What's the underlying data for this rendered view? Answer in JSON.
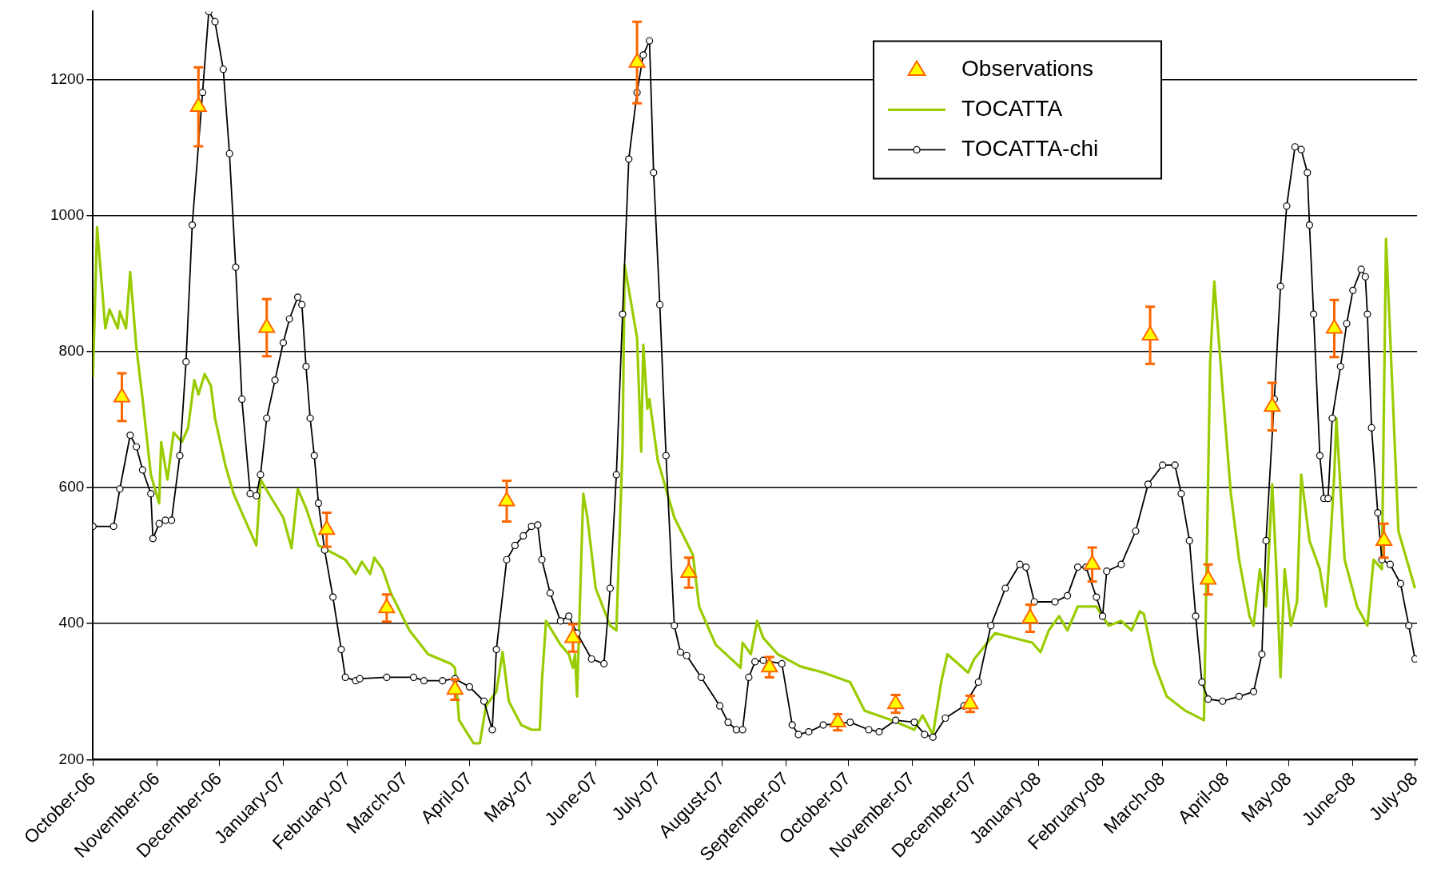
{
  "chart_data": {
    "type": "line",
    "xlim": [
      "2006-10-01",
      "2008-07-02"
    ],
    "xticks": [
      {
        "value": "2006-10-01",
        "label": "October-06"
      },
      {
        "value": "2006-11-01",
        "label": "November-06"
      },
      {
        "value": "2006-12-01",
        "label": "December-06"
      },
      {
        "value": "2007-01-01",
        "label": "January-07"
      },
      {
        "value": "2007-02-01",
        "label": "February-07"
      },
      {
        "value": "2007-03-01",
        "label": "March-07"
      },
      {
        "value": "2007-04-01",
        "label": "April-07"
      },
      {
        "value": "2007-05-01",
        "label": "May-07"
      },
      {
        "value": "2007-06-01",
        "label": "June-07"
      },
      {
        "value": "2007-07-01",
        "label": "July-07"
      },
      {
        "value": "2007-08-01",
        "label": "August-07"
      },
      {
        "value": "2007-09-01",
        "label": "September-07"
      },
      {
        "value": "2007-10-01",
        "label": "October-07"
      },
      {
        "value": "2007-11-01",
        "label": "November-07"
      },
      {
        "value": "2007-12-01",
        "label": "December-07"
      },
      {
        "value": "2008-01-01",
        "label": "January-08"
      },
      {
        "value": "2008-02-01",
        "label": "February-08"
      },
      {
        "value": "2008-03-01",
        "label": "March-08"
      },
      {
        "value": "2008-04-01",
        "label": "April-08"
      },
      {
        "value": "2008-05-01",
        "label": "May-08"
      },
      {
        "value": "2008-06-01",
        "label": "June-08"
      },
      {
        "value": "2008-07-01",
        "label": "July-08"
      }
    ],
    "ylim": [
      200,
      1300
    ],
    "yticks": [
      200,
      400,
      600,
      800,
      1000,
      1200
    ],
    "grid": "y",
    "legend": "top right",
    "series": [
      {
        "name": "Observations",
        "type": "scatter",
        "color": "#ff6600",
        "marker": "triangle",
        "x": [
          "2006-10-15",
          "2006-11-21",
          "2006-12-24",
          "2007-01-22",
          "2007-02-20",
          "2007-03-25",
          "2007-04-19",
          "2007-05-21",
          "2007-06-21",
          "2007-07-16",
          "2007-08-24",
          "2007-09-26",
          "2007-10-24",
          "2007-11-29",
          "2007-12-28",
          "2008-01-27",
          "2008-02-24",
          "2008-03-23",
          "2008-04-23",
          "2008-05-23",
          "2008-06-16"
        ],
        "values": [
          733,
          1160,
          835,
          538,
          423,
          303,
          580,
          379,
          1225,
          475,
          336,
          255,
          282,
          282,
          408,
          487,
          824,
          465,
          719,
          834,
          522
        ],
        "errors": [
          35,
          58,
          42,
          25,
          20,
          15,
          30,
          20,
          60,
          22,
          15,
          12,
          13,
          12,
          20,
          25,
          42,
          22,
          35,
          42,
          25
        ]
      },
      {
        "name": "TOCATTA",
        "color": "#99cc00",
        "marker": "none",
        "line_style": "solid",
        "x": [
          "2006-10-01",
          "2006-10-03",
          "2006-10-07",
          "2006-10-09",
          "2006-10-13",
          "2006-10-14",
          "2006-10-17",
          "2006-10-19",
          "2006-10-22",
          "2006-10-25",
          "2006-10-29",
          "2006-11-02",
          "2006-11-03",
          "2006-11-06",
          "2006-11-09",
          "2006-11-13",
          "2006-11-16",
          "2006-11-19",
          "2006-11-21",
          "2006-11-24",
          "2006-11-27",
          "2006-11-29",
          "2006-12-04",
          "2006-12-08",
          "2006-12-12",
          "2006-12-19",
          "2006-12-21",
          "2006-12-25",
          "2007-01-01",
          "2007-01-05",
          "2007-01-08",
          "2007-01-12",
          "2007-01-18",
          "2007-01-31",
          "2007-02-05",
          "2007-02-08",
          "2007-02-12",
          "2007-02-14",
          "2007-02-18",
          "2007-02-22",
          "2007-03-03",
          "2007-03-12",
          "2007-03-23",
          "2007-03-25",
          "2007-03-27",
          "2007-04-03",
          "2007-04-06",
          "2007-04-09",
          "2007-04-14",
          "2007-04-17",
          "2007-04-20",
          "2007-04-26",
          "2007-05-01",
          "2007-05-05",
          "2007-05-06",
          "2007-05-08",
          "2007-05-15",
          "2007-05-19",
          "2007-05-21",
          "2007-05-22",
          "2007-05-23",
          "2007-05-26",
          "2007-05-28",
          "2007-06-01",
          "2007-06-08",
          "2007-06-11",
          "2007-06-14",
          "2007-06-15",
          "2007-06-21",
          "2007-06-23",
          "2007-06-24",
          "2007-06-26",
          "2007-06-27",
          "2007-07-01",
          "2007-07-09",
          "2007-07-18",
          "2007-07-21",
          "2007-07-29",
          "2007-08-08",
          "2007-08-10",
          "2007-08-11",
          "2007-08-15",
          "2007-08-18",
          "2007-08-21",
          "2007-08-28",
          "2007-09-08",
          "2007-09-19",
          "2007-10-02",
          "2007-10-09",
          "2007-10-22",
          "2007-11-02",
          "2007-11-06",
          "2007-11-11",
          "2007-11-15",
          "2007-11-18",
          "2007-11-28",
          "2007-12-01",
          "2007-12-11",
          "2007-12-29",
          "2008-01-02",
          "2008-01-06",
          "2008-01-11",
          "2008-01-15",
          "2008-01-20",
          "2008-01-29",
          "2008-02-04",
          "2008-02-10",
          "2008-02-15",
          "2008-02-19",
          "2008-02-21",
          "2008-02-26",
          "2008-03-03",
          "2008-03-12",
          "2008-03-21",
          "2008-03-24",
          "2008-03-26",
          "2008-03-30",
          "2008-04-03",
          "2008-04-07",
          "2008-04-12",
          "2008-04-14",
          "2008-04-17",
          "2008-04-20",
          "2008-04-23",
          "2008-04-25",
          "2008-04-27",
          "2008-04-29",
          "2008-05-02",
          "2008-05-05",
          "2008-05-07",
          "2008-05-11",
          "2008-05-16",
          "2008-05-19",
          "2008-05-21",
          "2008-05-23",
          "2008-05-24",
          "2008-05-28",
          "2008-06-03",
          "2008-06-08",
          "2008-06-11",
          "2008-06-15",
          "2008-06-17",
          "2008-06-23",
          "2008-07-01"
        ],
        "values": [
          762,
          983,
          834,
          862,
          834,
          859,
          834,
          917,
          806,
          730,
          619,
          577,
          667,
          612,
          681,
          667,
          688,
          758,
          737,
          767,
          750,
          702,
          633,
          591,
          563,
          515,
          612,
          591,
          556,
          511,
          598,
          570,
          515,
          494,
          473,
          491,
          473,
          497,
          480,
          445,
          390,
          355,
          341,
          335,
          258,
          224,
          224,
          279,
          300,
          358,
          286,
          251,
          244,
          244,
          314,
          404,
          369,
          355,
          335,
          355,
          293,
          591,
          556,
          452,
          397,
          390,
          660,
          927,
          820,
          653,
          810,
          716,
          730,
          640,
          556,
          501,
          425,
          369,
          341,
          335,
          372,
          355,
          404,
          379,
          355,
          337,
          328,
          314,
          272,
          258,
          244,
          265,
          237,
          314,
          355,
          328,
          348,
          386,
          372,
          358,
          390,
          411,
          390,
          425,
          425,
          397,
          404,
          390,
          418,
          414,
          341,
          293,
          272,
          258,
          785,
          903,
          744,
          591,
          494,
          411,
          397,
          480,
          425,
          605,
          480,
          321,
          480,
          397,
          432,
          619,
          522,
          480,
          425,
          515,
          619,
          702,
          494,
          425,
          397,
          494,
          480,
          966,
          536,
          452
        ]
      },
      {
        "name": "TOCATTA-chi",
        "color": "#000000",
        "marker": "circle",
        "line_style": "solid",
        "x": [
          "2006-10-01",
          "2006-10-11",
          "2006-10-14",
          "2006-10-19",
          "2006-10-22",
          "2006-10-25",
          "2006-10-29",
          "2006-10-30",
          "2006-11-02",
          "2006-11-05",
          "2006-11-08",
          "2006-11-12",
          "2006-11-15",
          "2006-11-18",
          "2006-11-23",
          "2006-11-26",
          "2006-11-29",
          "2006-12-03",
          "2006-12-06",
          "2006-12-09",
          "2006-12-12",
          "2006-12-16",
          "2006-12-19",
          "2006-12-21",
          "2006-12-24",
          "2006-12-28",
          "2007-01-01",
          "2007-01-04",
          "2007-01-08",
          "2007-01-10",
          "2007-01-12",
          "2007-01-14",
          "2007-01-16",
          "2007-01-18",
          "2007-01-21",
          "2007-01-25",
          "2007-01-29",
          "2007-01-31",
          "2007-02-05",
          "2007-02-07",
          "2007-02-20",
          "2007-03-05",
          "2007-03-10",
          "2007-03-19",
          "2007-03-25",
          "2007-04-01",
          "2007-04-08",
          "2007-04-12",
          "2007-04-14",
          "2007-04-19",
          "2007-04-23",
          "2007-04-27",
          "2007-05-01",
          "2007-05-04",
          "2007-05-06",
          "2007-05-10",
          "2007-05-15",
          "2007-05-19",
          "2007-05-23",
          "2007-05-30",
          "2007-06-05",
          "2007-06-08",
          "2007-06-11",
          "2007-06-14",
          "2007-06-17",
          "2007-06-21",
          "2007-06-24",
          "2007-06-27",
          "2007-06-29",
          "2007-07-02",
          "2007-07-05",
          "2007-07-09",
          "2007-07-12",
          "2007-07-15",
          "2007-07-22",
          "2007-07-31",
          "2007-08-04",
          "2007-08-08",
          "2007-08-11",
          "2007-08-14",
          "2007-08-17",
          "2007-08-21",
          "2007-08-30",
          "2007-09-04",
          "2007-09-07",
          "2007-09-12",
          "2007-09-19",
          "2007-10-02",
          "2007-10-11",
          "2007-10-16",
          "2007-10-24",
          "2007-11-02",
          "2007-11-07",
          "2007-11-11",
          "2007-11-17",
          "2007-11-26",
          "2007-12-03",
          "2007-12-09",
          "2007-12-16",
          "2007-12-23",
          "2007-12-26",
          "2007-12-30",
          "2008-01-09",
          "2008-01-15",
          "2008-01-20",
          "2008-01-24",
          "2008-01-29",
          "2008-02-01",
          "2008-02-03",
          "2008-02-10",
          "2008-02-17",
          "2008-02-23",
          "2008-03-01",
          "2008-03-07",
          "2008-03-10",
          "2008-03-14",
          "2008-03-17",
          "2008-03-20",
          "2008-03-23",
          "2008-03-30",
          "2008-04-07",
          "2008-04-14",
          "2008-04-18",
          "2008-04-20",
          "2008-04-24",
          "2008-04-27",
          "2008-04-30",
          "2008-05-04",
          "2008-05-07",
          "2008-05-10",
          "2008-05-11",
          "2008-05-13",
          "2008-05-16",
          "2008-05-18",
          "2008-05-20",
          "2008-05-22",
          "2008-05-26",
          "2008-05-29",
          "2008-06-01",
          "2008-06-05",
          "2008-06-07",
          "2008-06-08",
          "2008-06-10",
          "2008-06-13",
          "2008-06-15",
          "2008-06-19",
          "2008-06-24",
          "2008-06-28",
          "2008-07-01"
        ],
        "values": [
          543,
          543,
          598,
          677,
          660,
          626,
          591,
          525,
          547,
          552,
          552,
          647,
          785,
          986,
          1181,
          1300,
          1285,
          1215,
          1091,
          924,
          730,
          591,
          588,
          619,
          702,
          758,
          813,
          848,
          880,
          869,
          778,
          702,
          647,
          577,
          508,
          439,
          362,
          321,
          316,
          319,
          321,
          321,
          316,
          316,
          319,
          307,
          286,
          244,
          362,
          494,
          515,
          529,
          543,
          545,
          494,
          445,
          404,
          411,
          386,
          348,
          341,
          452,
          619,
          855,
          1083,
          1181,
          1236,
          1257,
          1063,
          869,
          647,
          397,
          358,
          353,
          321,
          279,
          255,
          244,
          244,
          321,
          344,
          346,
          341,
          251,
          237,
          241,
          251,
          255,
          244,
          241,
          258,
          255,
          237,
          233,
          261,
          279,
          314,
          397,
          452,
          487,
          483,
          432,
          432,
          441,
          483,
          483,
          439,
          411,
          477,
          487,
          536,
          605,
          633,
          633,
          591,
          522,
          411,
          314,
          289,
          286,
          293,
          300,
          355,
          522,
          730,
          896,
          1014,
          1101,
          1097,
          1063,
          986,
          855,
          647,
          584,
          584,
          702,
          778,
          841,
          890,
          921,
          910,
          855,
          688,
          563,
          494,
          487,
          459,
          397,
          348
        ]
      }
    ]
  }
}
